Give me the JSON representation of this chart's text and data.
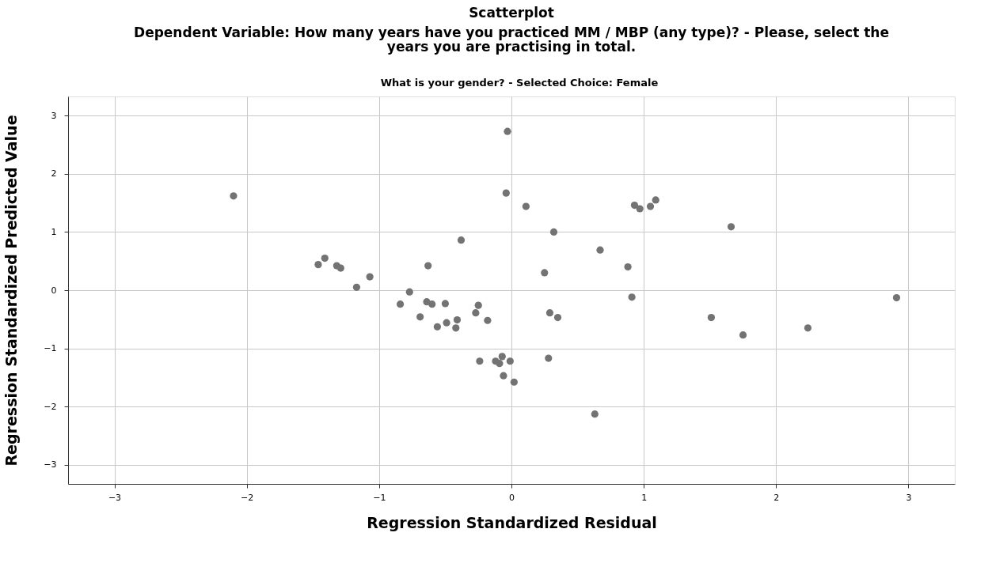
{
  "chart_data": {
    "type": "scatter",
    "title": "Scatterplot",
    "subtitle": "Dependent Variable: How many years have you practiced MM / MBP (any type)? - Please, select the years you are practising in total.",
    "annotations": [
      "What is your gender? - Selected Choice: Female"
    ],
    "xlabel": "Regression Standardized Residual",
    "ylabel": "Regression Standardized Predicted Value",
    "xlim": [
      -3.35,
      3.35
    ],
    "xticks": [
      -3,
      -2,
      -1,
      0,
      1,
      2,
      3
    ],
    "ylim": [
      -3.33,
      3.33
    ],
    "yticks": [
      -3,
      -2,
      -1,
      0,
      1,
      2,
      3
    ],
    "grid": true,
    "marker": "circle",
    "series": [
      {
        "color": "#737373",
        "x": [
          -2.1,
          -1.46,
          -1.41,
          -1.32,
          -1.29,
          -1.07,
          -1.17,
          -0.84,
          -0.77,
          -0.69,
          -0.63,
          -0.64,
          -0.6,
          -0.56,
          -0.5,
          -0.49,
          -0.41,
          -0.42,
          -0.38,
          -0.27,
          -0.25,
          -0.24,
          -0.18,
          -0.12,
          -0.09,
          -0.07,
          -0.06,
          -0.04,
          -0.03,
          -0.01,
          0.02,
          0.11,
          0.32,
          0.25,
          0.29,
          0.35,
          0.28,
          0.63,
          0.67,
          0.88,
          0.91,
          0.93,
          0.97,
          1.05,
          1.09,
          1.66,
          1.51,
          1.75,
          2.24,
          2.91
        ],
        "values": [
          1.62,
          0.44,
          0.55,
          0.42,
          0.38,
          0.23,
          0.05,
          -0.24,
          -0.03,
          -0.46,
          0.42,
          -0.2,
          -0.24,
          -0.63,
          -0.23,
          -0.56,
          -0.51,
          -0.65,
          0.86,
          -0.39,
          -0.26,
          -1.22,
          -0.52,
          -1.22,
          -1.26,
          -1.14,
          -1.47,
          1.67,
          2.73,
          -1.22,
          -1.58,
          1.44,
          1.0,
          0.3,
          -0.39,
          -0.47,
          -1.17,
          -2.13,
          0.69,
          0.4,
          -0.12,
          1.46,
          1.4,
          1.44,
          1.55,
          1.09,
          -0.47,
          -0.77,
          -0.65,
          -0.13
        ]
      }
    ]
  }
}
